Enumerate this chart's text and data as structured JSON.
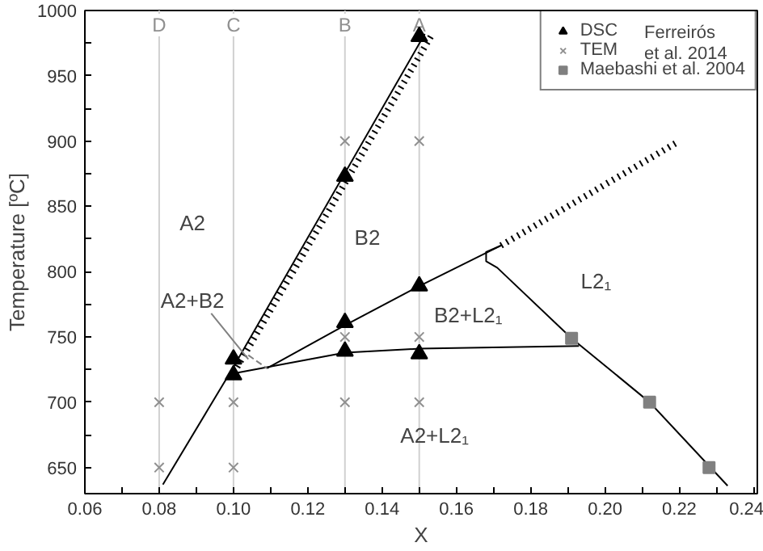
{
  "chart_data": {
    "type": "scatter",
    "xlabel": "X",
    "ylabel": "Temperature [ºC]",
    "xlim": [
      0.06,
      0.241
    ],
    "ylim": [
      630,
      1000
    ],
    "xticks": [
      {
        "value": 0.06,
        "label": "0.06"
      },
      {
        "value": 0.07,
        "label": null
      },
      {
        "value": 0.08,
        "label": "0.08"
      },
      {
        "value": 0.09,
        "label": null
      },
      {
        "value": 0.1,
        "label": "0.10"
      },
      {
        "value": 0.11,
        "label": null
      },
      {
        "value": 0.12,
        "label": "0.12"
      },
      {
        "value": 0.13,
        "label": null
      },
      {
        "value": 0.14,
        "label": "0.14"
      },
      {
        "value": 0.15,
        "label": null
      },
      {
        "value": 0.16,
        "label": "0.16"
      },
      {
        "value": 0.17,
        "label": null
      },
      {
        "value": 0.18,
        "label": "0.18"
      },
      {
        "value": 0.19,
        "label": null
      },
      {
        "value": 0.2,
        "label": "0.20"
      },
      {
        "value": 0.21,
        "label": null
      },
      {
        "value": 0.22,
        "label": "0.22"
      },
      {
        "value": 0.23,
        "label": null
      },
      {
        "value": 0.24,
        "label": "0.24"
      }
    ],
    "yticks": [
      650,
      {
        "value": 675,
        "label": null
      },
      700,
      {
        "value": 725,
        "label": null
      },
      750,
      {
        "value": 775,
        "label": null
      },
      800,
      {
        "value": 825,
        "label": null
      },
      850,
      {
        "value": 875,
        "label": null
      },
      900,
      {
        "value": 925,
        "label": null
      },
      950,
      {
        "value": 975,
        "label": null
      },
      1000
    ],
    "grid": false,
    "legend": "top right",
    "ref_lines": [
      {
        "axis": "x",
        "value": 0.08,
        "label": "D",
        "color": "#d0d0d0"
      },
      {
        "axis": "x",
        "value": 0.1,
        "label": "C",
        "color": "#d0d0d0"
      },
      {
        "axis": "x",
        "value": 0.13,
        "label": "B",
        "color": "#d0d0d0"
      },
      {
        "axis": "x",
        "value": 0.15,
        "label": "A",
        "color": "#d0d0d0"
      }
    ],
    "series": [
      {
        "type": "line",
        "color": "#000000",
        "line_style": "solid",
        "marker": "none",
        "x": [
          0.081,
          0.1,
          0.1515
        ],
        "values": [
          637,
          727,
          982
        ]
      },
      {
        "type": "line",
        "color": "#000000",
        "line_style": "dotted",
        "marker": "none",
        "x": [
          0.101,
          0.1535
        ],
        "values": [
          727,
          982
        ]
      },
      {
        "type": "line",
        "color": "#000000",
        "line_style": "solid",
        "marker": "none",
        "x": [
          0.109,
          0.13,
          0.15,
          0.172
        ],
        "values": [
          726,
          759,
          789,
          820
        ]
      },
      {
        "type": "line",
        "color": "#000000",
        "line_style": "dotted",
        "marker": "none",
        "x": [
          0.172,
          0.22
        ],
        "values": [
          820,
          900
        ]
      },
      {
        "type": "line",
        "color": "#000000",
        "line_style": "solid",
        "marker": "none",
        "x": [
          0.1,
          0.13,
          0.15,
          0.193
        ],
        "values": [
          722,
          738,
          741,
          743
        ]
      },
      {
        "type": "line",
        "color": "#000000",
        "line_style": "solid",
        "marker": "none",
        "x": [
          0.172,
          0.168,
          0.168,
          0.171,
          0.191,
          0.212,
          0.233
        ],
        "values": [
          820,
          815,
          808,
          803,
          749,
          700,
          636
        ]
      },
      {
        "type": "line",
        "color": "#808080",
        "line_style": "solid",
        "marker": "none",
        "x": [
          0.094,
          0.104
        ],
        "values": [
          768,
          733
        ]
      },
      {
        "type": "line",
        "color": "#808080",
        "line_style": "dashed",
        "marker": "none",
        "x": [
          0.104,
          0.109
        ],
        "values": [
          736,
          726
        ]
      },
      {
        "name": "DSC",
        "color": "#000000",
        "marker": "triangle",
        "x": [
          0.1,
          0.1,
          0.13,
          0.13,
          0.13,
          0.15,
          0.15,
          0.15
        ],
        "values": [
          733,
          721,
          873,
          761,
          739,
          980,
          789,
          737
        ]
      },
      {
        "name": "TEM",
        "color": "#909090",
        "marker": "cross",
        "x": [
          0.08,
          0.08,
          0.1,
          0.1,
          0.13,
          0.13,
          0.13,
          0.15,
          0.15,
          0.15
        ],
        "values": [
          700,
          650,
          700,
          650,
          900,
          750,
          700,
          900,
          750,
          700
        ]
      },
      {
        "name": "Maebashi et al. 2004",
        "color": "#808080",
        "marker": "square",
        "x": [
          0.191,
          0.212,
          0.228
        ],
        "values": [
          749,
          700,
          650
        ]
      }
    ],
    "annotations": [
      "A2",
      "B2",
      "A2+B2",
      "B2+L2₁",
      "L2₁",
      "A2+L2₁",
      "Ferreirós et al. 2014"
    ]
  }
}
